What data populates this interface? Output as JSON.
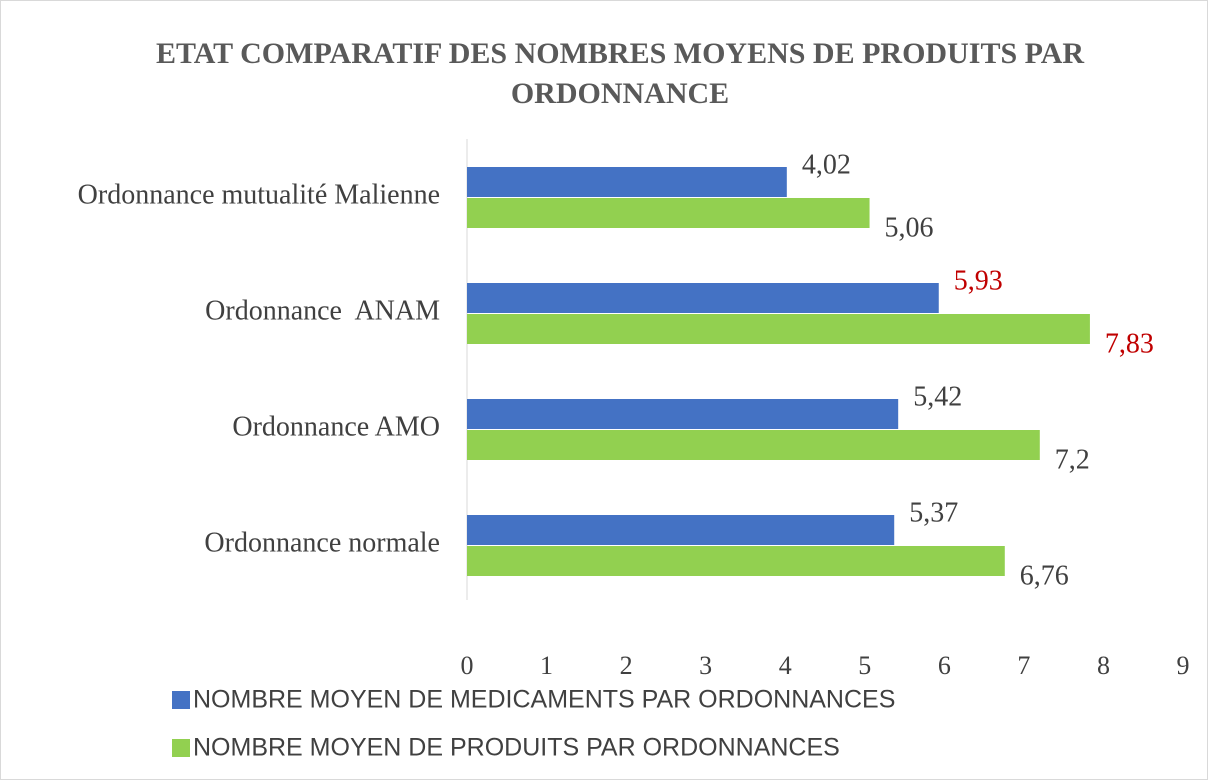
{
  "chart_data": {
    "type": "hbar",
    "title": "ETAT COMPARATIF DES NOMBRES MOYENS DE PRODUITS PAR ORDONNANCE",
    "categories": [
      "Ordonnance mutualité Malienne",
      "Ordonnance  ANAM",
      "Ordonnance AMO",
      "Ordonnance normale"
    ],
    "series": [
      {
        "name": "NOMBRE MOYEN DE MEDICAMENTS PAR ORDONNANCES",
        "color": "#4472c4",
        "values": [
          4.02,
          5.93,
          5.42,
          5.37
        ],
        "value_labels": [
          "4,02",
          "5,93",
          "5,42",
          "5,37"
        ],
        "value_label_colors": [
          "#404040",
          "#c00000",
          "#404040",
          "#404040"
        ]
      },
      {
        "name": "NOMBRE MOYEN DE PRODUITS PAR ORDONNANCES",
        "color": "#92d050",
        "values": [
          5.06,
          7.83,
          7.2,
          6.76
        ],
        "value_labels": [
          "5,06",
          "7,83",
          "7,2",
          "6,76"
        ],
        "value_label_colors": [
          "#404040",
          "#c00000",
          "#404040",
          "#404040"
        ]
      }
    ],
    "xlim": [
      0,
      9
    ],
    "xticks": [
      0,
      1,
      2,
      3,
      4,
      5,
      6,
      7,
      8,
      9
    ],
    "grid": false,
    "legend": "bottom"
  }
}
